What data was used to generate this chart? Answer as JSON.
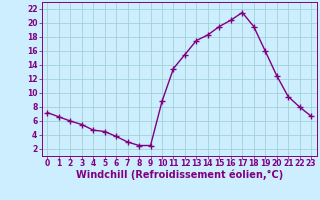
{
  "x": [
    0,
    1,
    2,
    3,
    4,
    5,
    6,
    7,
    8,
    9,
    10,
    11,
    12,
    13,
    14,
    15,
    16,
    17,
    18,
    19,
    20,
    21,
    22,
    23
  ],
  "y": [
    7.2,
    6.6,
    6.0,
    5.5,
    4.7,
    4.5,
    3.8,
    3.0,
    2.5,
    2.5,
    8.8,
    13.5,
    15.5,
    17.5,
    18.3,
    19.5,
    20.4,
    21.5,
    19.5,
    16.0,
    12.5,
    9.5,
    8.0,
    6.7
  ],
  "line_color": "#800080",
  "marker": "+",
  "markersize": 4,
  "linewidth": 1.0,
  "bg_color": "#cceeff",
  "grid_color": "#99cccc",
  "xlabel": "Windchill (Refroidissement éolien,°C)",
  "xlabel_fontsize": 7,
  "xtick_fontsize": 5.5,
  "ytick_fontsize": 5.5,
  "ylim": [
    1,
    23
  ],
  "xlim": [
    -0.5,
    23.5
  ],
  "yticks": [
    2,
    4,
    6,
    8,
    10,
    12,
    14,
    16,
    18,
    20,
    22
  ],
  "xticks": [
    0,
    1,
    2,
    3,
    4,
    5,
    6,
    7,
    8,
    9,
    10,
    11,
    12,
    13,
    14,
    15,
    16,
    17,
    18,
    19,
    20,
    21,
    22,
    23
  ]
}
